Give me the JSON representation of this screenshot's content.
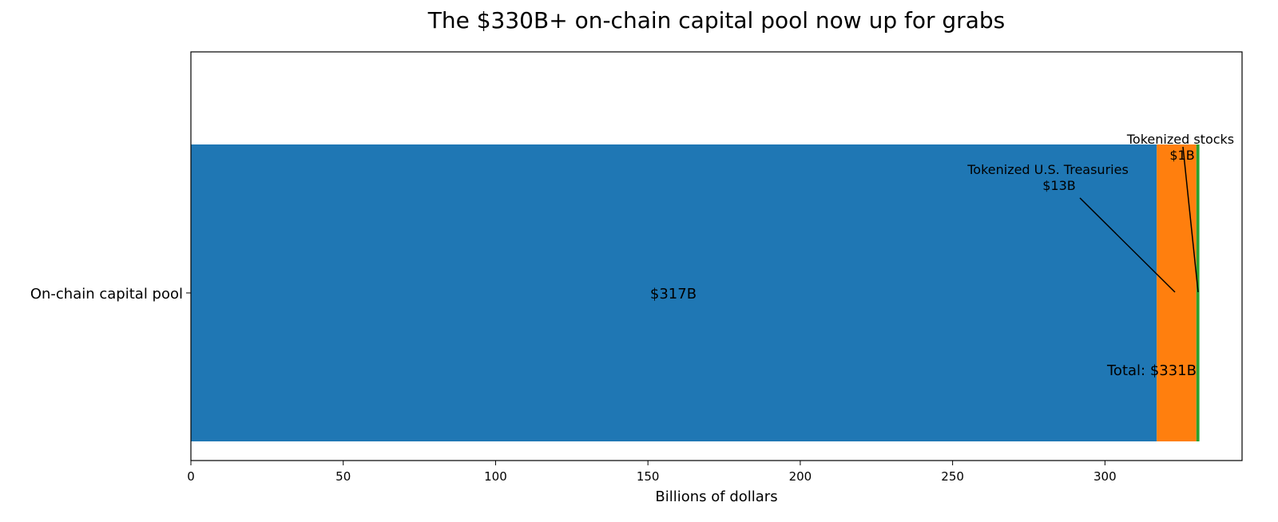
{
  "chart_data": {
    "type": "bar",
    "orientation": "horizontal",
    "stacked": true,
    "title": "The $330B+ on-chain capital pool now up for grabs",
    "xlabel": "Billions of dollars",
    "ylabel": "",
    "categories": [
      "On-chain capital pool"
    ],
    "xlim": [
      0,
      345
    ],
    "xticks": [
      0,
      50,
      100,
      150,
      200,
      250,
      300
    ],
    "grid": false,
    "series": [
      {
        "name": "",
        "values": [
          317
        ],
        "color": "#1f77b4",
        "label": "$317B"
      },
      {
        "name": "Tokenized U.S. Treasuries",
        "values": [
          13
        ],
        "color": "#ff7f0e",
        "label": "$13B"
      },
      {
        "name": "Tokenized stocks",
        "values": [
          1
        ],
        "color": "#2ca02c",
        "label": "$1B"
      }
    ],
    "total_label": "Total: $331B"
  }
}
